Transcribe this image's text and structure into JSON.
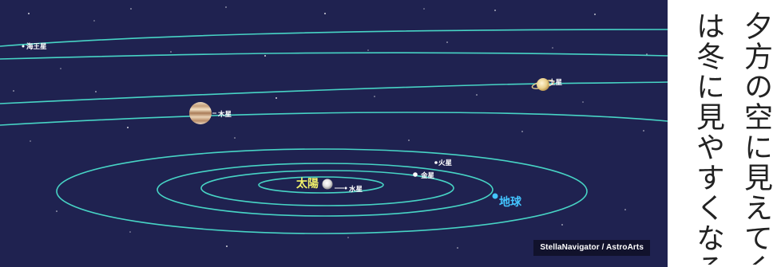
{
  "diagram": {
    "labels": {
      "neptune": "海王星",
      "jupiter": "木星",
      "saturn": "土星",
      "mars": "火星",
      "venus": "金星",
      "mercury": "水星",
      "sun": "太陽",
      "earth": "地球"
    },
    "credit": "StellaNavigator / AstroArts",
    "colors": {
      "sky": "#1f2250",
      "orbit": "#47d4c5",
      "sun_label": "#f3f36a",
      "earth_label": "#43c5ff"
    }
  },
  "side_text": {
    "line_1": "夕方の空に見えてく",
    "line_2": "は冬に見やすくなる"
  }
}
